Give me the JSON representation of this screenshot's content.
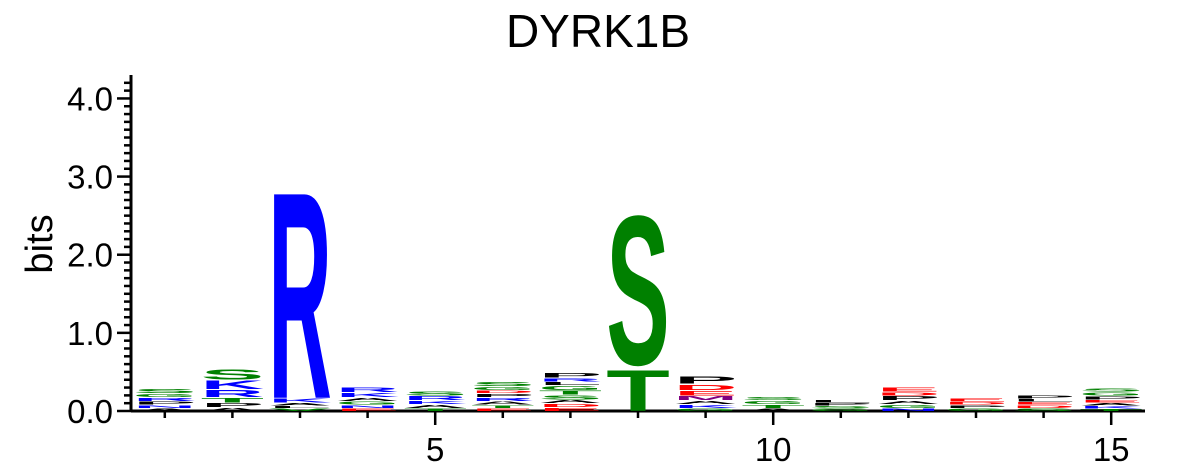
{
  "chart_data": {
    "type": "sequence-logo",
    "title": "DYRK1B",
    "xlabel": "",
    "ylabel": "bits",
    "ylim": [
      0,
      4.3
    ],
    "y_ticks": [
      "0.0",
      "1.0",
      "2.0",
      "3.0",
      "4.0"
    ],
    "x_range": [
      0.5,
      15.5
    ],
    "x_ticks": [
      "5",
      "10",
      "15"
    ],
    "grid": false,
    "colors": {
      "basic": "#0000ff",
      "polar": "#008000",
      "acidic": "#ff0000",
      "hydrophobic": "#000000",
      "purple": "#800080"
    },
    "positions": [
      {
        "pos": 1,
        "stack": [
          {
            "letter": "A",
            "bits": 0.04,
            "color": "#000000"
          },
          {
            "letter": "N",
            "bits": 0.04,
            "color": "#0000ff"
          },
          {
            "letter": "P",
            "bits": 0.05,
            "color": "#000000"
          },
          {
            "letter": "R",
            "bits": 0.05,
            "color": "#0000ff"
          },
          {
            "letter": "G",
            "bits": 0.05,
            "color": "#008000"
          },
          {
            "letter": "S",
            "bits": 0.06,
            "color": "#008000"
          }
        ]
      },
      {
        "pos": 2,
        "stack": [
          {
            "letter": "A",
            "bits": 0.05,
            "color": "#000000"
          },
          {
            "letter": "P",
            "bits": 0.06,
            "color": "#000000"
          },
          {
            "letter": "T",
            "bits": 0.07,
            "color": "#008000"
          },
          {
            "letter": "R",
            "bits": 0.1,
            "color": "#0000ff"
          },
          {
            "letter": "K",
            "bits": 0.12,
            "color": "#0000ff"
          },
          {
            "letter": "S",
            "bits": 0.15,
            "color": "#008000"
          }
        ]
      },
      {
        "pos": 3,
        "stack": [
          {
            "letter": "V",
            "bits": 0.04,
            "color": "#008000"
          },
          {
            "letter": "L",
            "bits": 0.03,
            "color": "#000000"
          },
          {
            "letter": "A",
            "bits": 0.04,
            "color": "#000000"
          },
          {
            "letter": "K",
            "bits": 0.06,
            "color": "#0000ff"
          },
          {
            "letter": "R",
            "bits": 3.05,
            "color": "#0000ff"
          }
        ]
      },
      {
        "pos": 4,
        "stack": [
          {
            "letter": "E",
            "bits": 0.04,
            "color": "#ff0000"
          },
          {
            "letter": "N",
            "bits": 0.04,
            "color": "#0000ff"
          },
          {
            "letter": "G",
            "bits": 0.05,
            "color": "#008000"
          },
          {
            "letter": "A",
            "bits": 0.05,
            "color": "#000000"
          },
          {
            "letter": "K",
            "bits": 0.06,
            "color": "#0000ff"
          },
          {
            "letter": "R",
            "bits": 0.07,
            "color": "#0000ff"
          }
        ]
      },
      {
        "pos": 5,
        "stack": [
          {
            "letter": "T",
            "bits": 0.04,
            "color": "#008000"
          },
          {
            "letter": "A",
            "bits": 0.05,
            "color": "#000000"
          },
          {
            "letter": "K",
            "bits": 0.05,
            "color": "#0000ff"
          },
          {
            "letter": "R",
            "bits": 0.06,
            "color": "#0000ff"
          },
          {
            "letter": "S",
            "bits": 0.06,
            "color": "#008000"
          }
        ]
      },
      {
        "pos": 6,
        "stack": [
          {
            "letter": "E",
            "bits": 0.04,
            "color": "#ff0000"
          },
          {
            "letter": "T",
            "bits": 0.04,
            "color": "#008000"
          },
          {
            "letter": "A",
            "bits": 0.05,
            "color": "#000000"
          },
          {
            "letter": "R",
            "bits": 0.05,
            "color": "#0000ff"
          },
          {
            "letter": "P",
            "bits": 0.05,
            "color": "#000000"
          },
          {
            "letter": "D",
            "bits": 0.04,
            "color": "#ff0000"
          },
          {
            "letter": "G",
            "bits": 0.05,
            "color": "#008000"
          },
          {
            "letter": "S",
            "bits": 0.06,
            "color": "#008000"
          }
        ]
      },
      {
        "pos": 7,
        "stack": [
          {
            "letter": "E",
            "bits": 0.05,
            "color": "#ff0000"
          },
          {
            "letter": "D",
            "bits": 0.05,
            "color": "#ff0000"
          },
          {
            "letter": "A",
            "bits": 0.05,
            "color": "#000000"
          },
          {
            "letter": "S",
            "bits": 0.06,
            "color": "#008000"
          },
          {
            "letter": "T",
            "bits": 0.06,
            "color": "#008000"
          },
          {
            "letter": "G",
            "bits": 0.06,
            "color": "#008000"
          },
          {
            "letter": "L",
            "bits": 0.05,
            "color": "#000000"
          },
          {
            "letter": "R",
            "bits": 0.05,
            "color": "#0000ff"
          },
          {
            "letter": "P",
            "bits": 0.07,
            "color": "#000000"
          }
        ]
      },
      {
        "pos": 8,
        "stack": [
          {
            "letter": "T",
            "bits": 0.6,
            "color": "#008000"
          },
          {
            "letter": "S",
            "bits": 2.2,
            "color": "#008000"
          }
        ]
      },
      {
        "pos": 9,
        "stack": [
          {
            "letter": "G",
            "bits": 0.04,
            "color": "#008000"
          },
          {
            "letter": "K",
            "bits": 0.05,
            "color": "#0000ff"
          },
          {
            "letter": "A",
            "bits": 0.05,
            "color": "#000000"
          },
          {
            "letter": "M",
            "bits": 0.06,
            "color": "#800080"
          },
          {
            "letter": "E",
            "bits": 0.07,
            "color": "#ff0000"
          },
          {
            "letter": "D",
            "bits": 0.08,
            "color": "#ff0000"
          },
          {
            "letter": "P",
            "bits": 0.1,
            "color": "#000000"
          }
        ]
      },
      {
        "pos": 10,
        "stack": [
          {
            "letter": "A",
            "bits": 0.04,
            "color": "#000000"
          },
          {
            "letter": "T",
            "bits": 0.05,
            "color": "#008000"
          },
          {
            "letter": "G",
            "bits": 0.05,
            "color": "#008000"
          },
          {
            "letter": "S",
            "bits": 0.05,
            "color": "#008000"
          }
        ]
      },
      {
        "pos": 11,
        "stack": [
          {
            "letter": "G",
            "bits": 0.03,
            "color": "#008000"
          },
          {
            "letter": "S",
            "bits": 0.04,
            "color": "#008000"
          },
          {
            "letter": "P",
            "bits": 0.04,
            "color": "#000000"
          },
          {
            "letter": "L",
            "bits": 0.04,
            "color": "#000000"
          }
        ]
      },
      {
        "pos": 12,
        "stack": [
          {
            "letter": "N",
            "bits": 0.04,
            "color": "#0000ff"
          },
          {
            "letter": "G",
            "bits": 0.05,
            "color": "#008000"
          },
          {
            "letter": "A",
            "bits": 0.05,
            "color": "#000000"
          },
          {
            "letter": "P",
            "bits": 0.06,
            "color": "#000000"
          },
          {
            "letter": "D",
            "bits": 0.05,
            "color": "#ff0000"
          },
          {
            "letter": "E",
            "bits": 0.06,
            "color": "#ff0000"
          }
        ]
      },
      {
        "pos": 13,
        "stack": [
          {
            "letter": "G",
            "bits": 0.04,
            "color": "#008000"
          },
          {
            "letter": "P",
            "bits": 0.04,
            "color": "#000000"
          },
          {
            "letter": "D",
            "bits": 0.04,
            "color": "#ff0000"
          },
          {
            "letter": "E",
            "bits": 0.05,
            "color": "#ff0000"
          }
        ]
      },
      {
        "pos": 14,
        "stack": [
          {
            "letter": "S",
            "bits": 0.04,
            "color": "#008000"
          },
          {
            "letter": "D",
            "bits": 0.04,
            "color": "#ff0000"
          },
          {
            "letter": "E",
            "bits": 0.04,
            "color": "#ff0000"
          },
          {
            "letter": "L",
            "bits": 0.04,
            "color": "#000000"
          },
          {
            "letter": "P",
            "bits": 0.05,
            "color": "#000000"
          }
        ]
      },
      {
        "pos": 15,
        "stack": [
          {
            "letter": "T",
            "bits": 0.03,
            "color": "#008000"
          },
          {
            "letter": "K",
            "bits": 0.04,
            "color": "#0000ff"
          },
          {
            "letter": "A",
            "bits": 0.04,
            "color": "#000000"
          },
          {
            "letter": "E",
            "bits": 0.04,
            "color": "#ff0000"
          },
          {
            "letter": "P",
            "bits": 0.05,
            "color": "#000000"
          },
          {
            "letter": "G",
            "bits": 0.05,
            "color": "#008000"
          },
          {
            "letter": "S",
            "bits": 0.05,
            "color": "#008000"
          }
        ]
      }
    ]
  }
}
